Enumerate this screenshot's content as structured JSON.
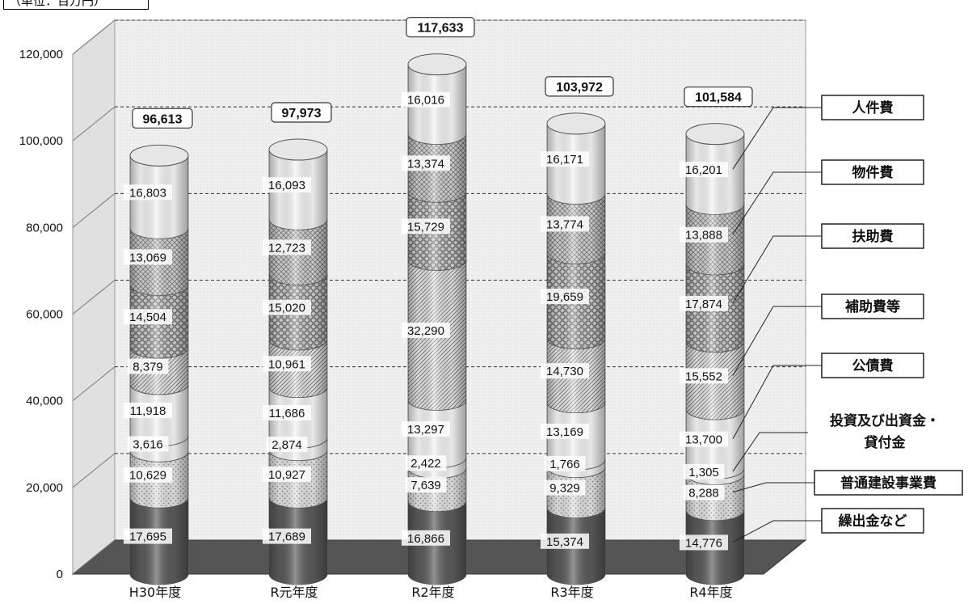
{
  "unit_label": "（単位：百万円）",
  "chart_data": {
    "type": "bar",
    "stacked": true,
    "style": "3d-cylinder",
    "categories": [
      "H30年度",
      "R元年度",
      "R2年度",
      "R3年度",
      "R4年度"
    ],
    "ylim": [
      0,
      120000
    ],
    "yticks": [
      0,
      20000,
      40000,
      60000,
      80000,
      100000,
      120000
    ],
    "ytick_labels": [
      "0",
      "20,000",
      "40,000",
      "60,000",
      "80,000",
      "100,000",
      "120,000"
    ],
    "grid": true,
    "totals": [
      96613,
      97973,
      117633,
      103972,
      101584
    ],
    "total_labels": [
      "96,613",
      "97,973",
      "117,633",
      "103,972",
      "101,584"
    ],
    "legend_position": "right",
    "series": [
      {
        "name": "繰出金など",
        "values": [
          17695,
          17689,
          16866,
          15374,
          14776
        ],
        "labels": [
          "17,695",
          "17,689",
          "16,866",
          "15,374",
          "14,776"
        ],
        "pattern": "dark"
      },
      {
        "name": "普通建設事業費",
        "values": [
          10629,
          10927,
          7639,
          9329,
          8288
        ],
        "labels": [
          "10,629",
          "10,927",
          "7,639",
          "9,329",
          "8,288"
        ],
        "pattern": "dots"
      },
      {
        "name": "投資及び出資金・貸付金",
        "values": [
          3616,
          2874,
          2422,
          1766,
          1305
        ],
        "labels": [
          "3,616",
          "2,874",
          "2,422",
          "1,766",
          "1,305"
        ],
        "pattern": "plain"
      },
      {
        "name": "公債費",
        "values": [
          11918,
          11686,
          13297,
          13169,
          13700
        ],
        "labels": [
          "11,918",
          "11,686",
          "13,297",
          "13,169",
          "13,700"
        ],
        "pattern": "plain"
      },
      {
        "name": "補助費等",
        "values": [
          8379,
          10961,
          32290,
          14730,
          15552
        ],
        "labels": [
          "8,379",
          "10,961",
          "32,290",
          "14,730",
          "15,552"
        ],
        "pattern": "diagonal"
      },
      {
        "name": "扶助費",
        "values": [
          14504,
          15020,
          15729,
          19659,
          17874
        ],
        "labels": [
          "14,504",
          "15,020",
          "15,729",
          "19,659",
          "17,874"
        ],
        "pattern": "scales"
      },
      {
        "name": "物件費",
        "values": [
          13069,
          12723,
          13374,
          13774,
          13888
        ],
        "labels": [
          "13,069",
          "12,723",
          "13,374",
          "13,774",
          "13,888"
        ],
        "pattern": "crosshatch"
      },
      {
        "name": "人件費",
        "values": [
          16803,
          16093,
          16016,
          16171,
          16201
        ],
        "labels": [
          "16,803",
          "16,093",
          "16,016",
          "16,171",
          "16,201"
        ],
        "pattern": "plain"
      }
    ]
  }
}
